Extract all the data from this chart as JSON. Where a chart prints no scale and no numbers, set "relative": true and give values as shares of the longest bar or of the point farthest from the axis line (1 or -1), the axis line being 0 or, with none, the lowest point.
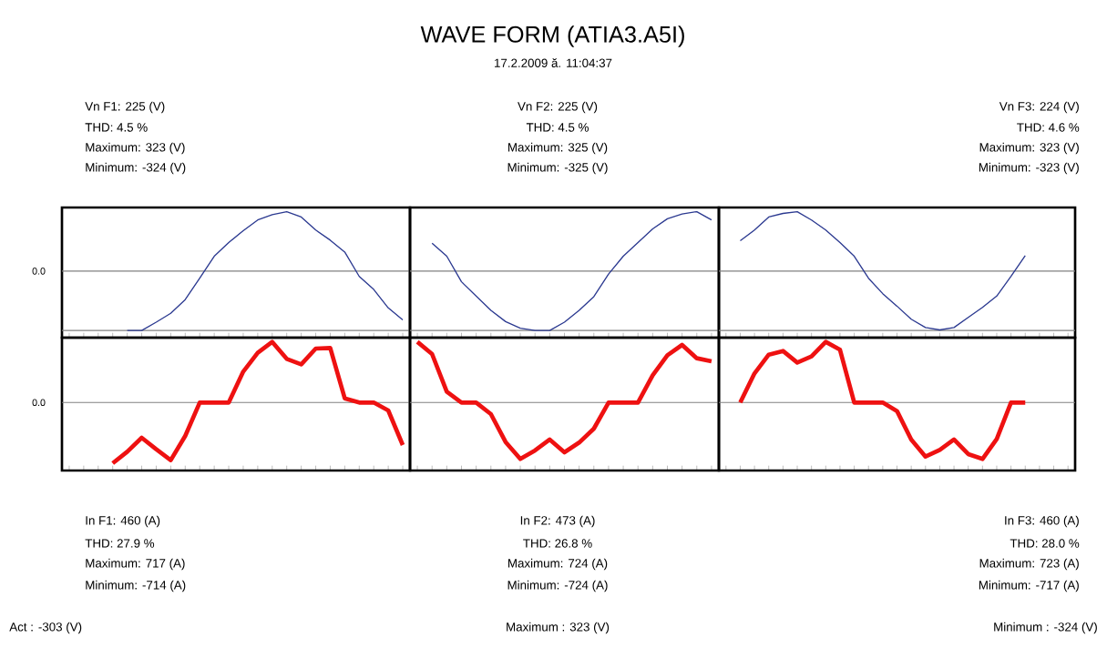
{
  "chart_data": [
    {
      "type": "line",
      "relative": true,
      "categories": [
        null,
        null,
        null,
        null,
        null,
        null,
        null,
        null,
        null,
        null,
        null,
        null,
        null,
        null,
        null,
        null,
        null,
        null,
        null,
        null,
        null,
        null,
        null,
        null
      ],
      "series": [
        {
          "color": "#2b3990",
          "values": [
            null,
            null,
            null,
            null,
            -1.0,
            -1.0,
            -0.86,
            -0.71,
            -0.48,
            -0.12,
            0.25,
            0.48,
            0.68,
            0.86,
            0.95,
            1.0,
            0.91,
            0.69,
            0.52,
            0.32,
            -0.09,
            -0.31,
            -0.62,
            -0.82
          ]
        }
      ],
      "ref_lines": [
        {
          "axis": "y",
          "value": 0,
          "label": "0.0"
        },
        {
          "axis": "y",
          "value": -1
        }
      ],
      "annotations": [
        "Vn F1: 225 (V)",
        "THD: 4.5 %",
        "Maximum: 323 (V)",
        "Minimum: -324 (V)"
      ]
    },
    {
      "type": "line",
      "relative": true,
      "title": "WAVE FORM (ATIA3.A5I)",
      "subtitle": "17.2.2009 ă. 11:04:37",
      "categories": [
        null,
        null,
        null,
        null,
        null,
        null,
        null,
        null,
        null,
        null,
        null,
        null,
        null,
        null,
        null,
        null,
        null,
        null,
        null,
        null,
        null
      ],
      "series": [
        {
          "color": "#2b3990",
          "values": [
            null,
            0.47,
            0.25,
            -0.18,
            -0.42,
            -0.66,
            -0.85,
            -0.96,
            -1.0,
            -1.0,
            -0.86,
            -0.66,
            -0.43,
            -0.05,
            0.25,
            0.48,
            0.71,
            0.88,
            0.96,
            1.0,
            0.86
          ]
        }
      ],
      "ref_lines": [
        {
          "axis": "y",
          "value": 0
        },
        {
          "axis": "y",
          "value": -1
        }
      ],
      "annotations": [
        "Vn F2: 225 (V)",
        "THD: 4.5 %",
        "Maximum: 325 (V)",
        "Minimum: -325 (V)"
      ]
    },
    {
      "type": "line",
      "relative": true,
      "categories": [
        null,
        null,
        null,
        null,
        null,
        null,
        null,
        null,
        null,
        null,
        null,
        null,
        null,
        null,
        null,
        null,
        null,
        null,
        null,
        null,
        null,
        null,
        null,
        null,
        null
      ],
      "series": [
        {
          "color": "#2b3990",
          "values": [
            null,
            0.51,
            0.69,
            0.91,
            0.97,
            1.0,
            0.86,
            0.69,
            0.48,
            0.25,
            -0.12,
            -0.38,
            -0.59,
            -0.81,
            -0.95,
            -0.99,
            -0.95,
            -0.78,
            -0.61,
            -0.42,
            -0.09,
            0.26,
            null,
            null,
            null
          ]
        }
      ],
      "ref_lines": [
        {
          "axis": "y",
          "value": 0
        },
        {
          "axis": "y",
          "value": -1
        }
      ],
      "annotations": [
        "Vn F3: 224 (V)",
        "THD: 4.6 %",
        "Maximum: 323 (V)",
        "Minimum: -323 (V)"
      ]
    },
    {
      "type": "line",
      "relative": true,
      "categories": [
        null,
        null,
        null,
        null,
        null,
        null,
        null,
        null,
        null,
        null,
        null,
        null,
        null,
        null,
        null,
        null,
        null,
        null,
        null,
        null,
        null,
        null,
        null,
        null
      ],
      "series": [
        {
          "color": "#ee1111",
          "values": [
            null,
            null,
            null,
            -1.0,
            -0.81,
            -0.58,
            -0.77,
            -0.95,
            -0.55,
            0.0,
            0.0,
            0.0,
            0.51,
            0.82,
            1.0,
            0.72,
            0.63,
            0.89,
            0.9,
            0.07,
            0.0,
            0.0,
            -0.13,
            -0.7
          ]
        }
      ],
      "ref_lines": [
        {
          "axis": "y",
          "value": 0,
          "label": "0.0"
        }
      ],
      "annotations": [
        "In F1: 460 (A)",
        "THD: 27.9 %",
        "Maximum: 717 (A)",
        "Minimum: -714 (A)",
        "Act : -303 (V)"
      ]
    },
    {
      "type": "line",
      "relative": true,
      "categories": [
        null,
        null,
        null,
        null,
        null,
        null,
        null,
        null,
        null,
        null,
        null,
        null,
        null,
        null,
        null,
        null,
        null,
        null,
        null,
        null,
        null
      ],
      "series": [
        {
          "color": "#ee1111",
          "values": [
            1.0,
            0.8,
            0.18,
            0.0,
            0.0,
            -0.19,
            -0.65,
            -0.93,
            -0.79,
            -0.61,
            -0.82,
            -0.66,
            -0.43,
            0.0,
            0.0,
            0.0,
            0.45,
            0.78,
            0.95,
            0.73,
            0.68
          ]
        }
      ],
      "ref_lines": [
        {
          "axis": "y",
          "value": 0
        }
      ],
      "annotations": [
        "In F2: 473 (A)",
        "THD: 26.8 %",
        "Maximum: 724 (A)",
        "Minimum: -724 (A)",
        "Maximum : 323 (V)"
      ]
    },
    {
      "type": "line",
      "relative": true,
      "categories": [
        null,
        null,
        null,
        null,
        null,
        null,
        null,
        null,
        null,
        null,
        null,
        null,
        null,
        null,
        null,
        null,
        null,
        null,
        null,
        null,
        null,
        null,
        null,
        null,
        null
      ],
      "series": [
        {
          "color": "#ee1111",
          "values": [
            null,
            0.0,
            0.48,
            0.79,
            0.85,
            0.66,
            0.76,
            1.0,
            0.87,
            0.0,
            0.0,
            0.0,
            -0.14,
            -0.61,
            -0.89,
            -0.78,
            -0.61,
            -0.85,
            -0.93,
            -0.6,
            0.0,
            0.0,
            null,
            null,
            null
          ]
        }
      ],
      "ref_lines": [
        {
          "axis": "y",
          "value": 0
        }
      ],
      "annotations": [
        "In F3: 460 (A)",
        "THD: 28.0 %",
        "Maximum: 723 (A)",
        "Minimum: -717 (A)",
        "Minimum : -324 (V)"
      ]
    }
  ]
}
